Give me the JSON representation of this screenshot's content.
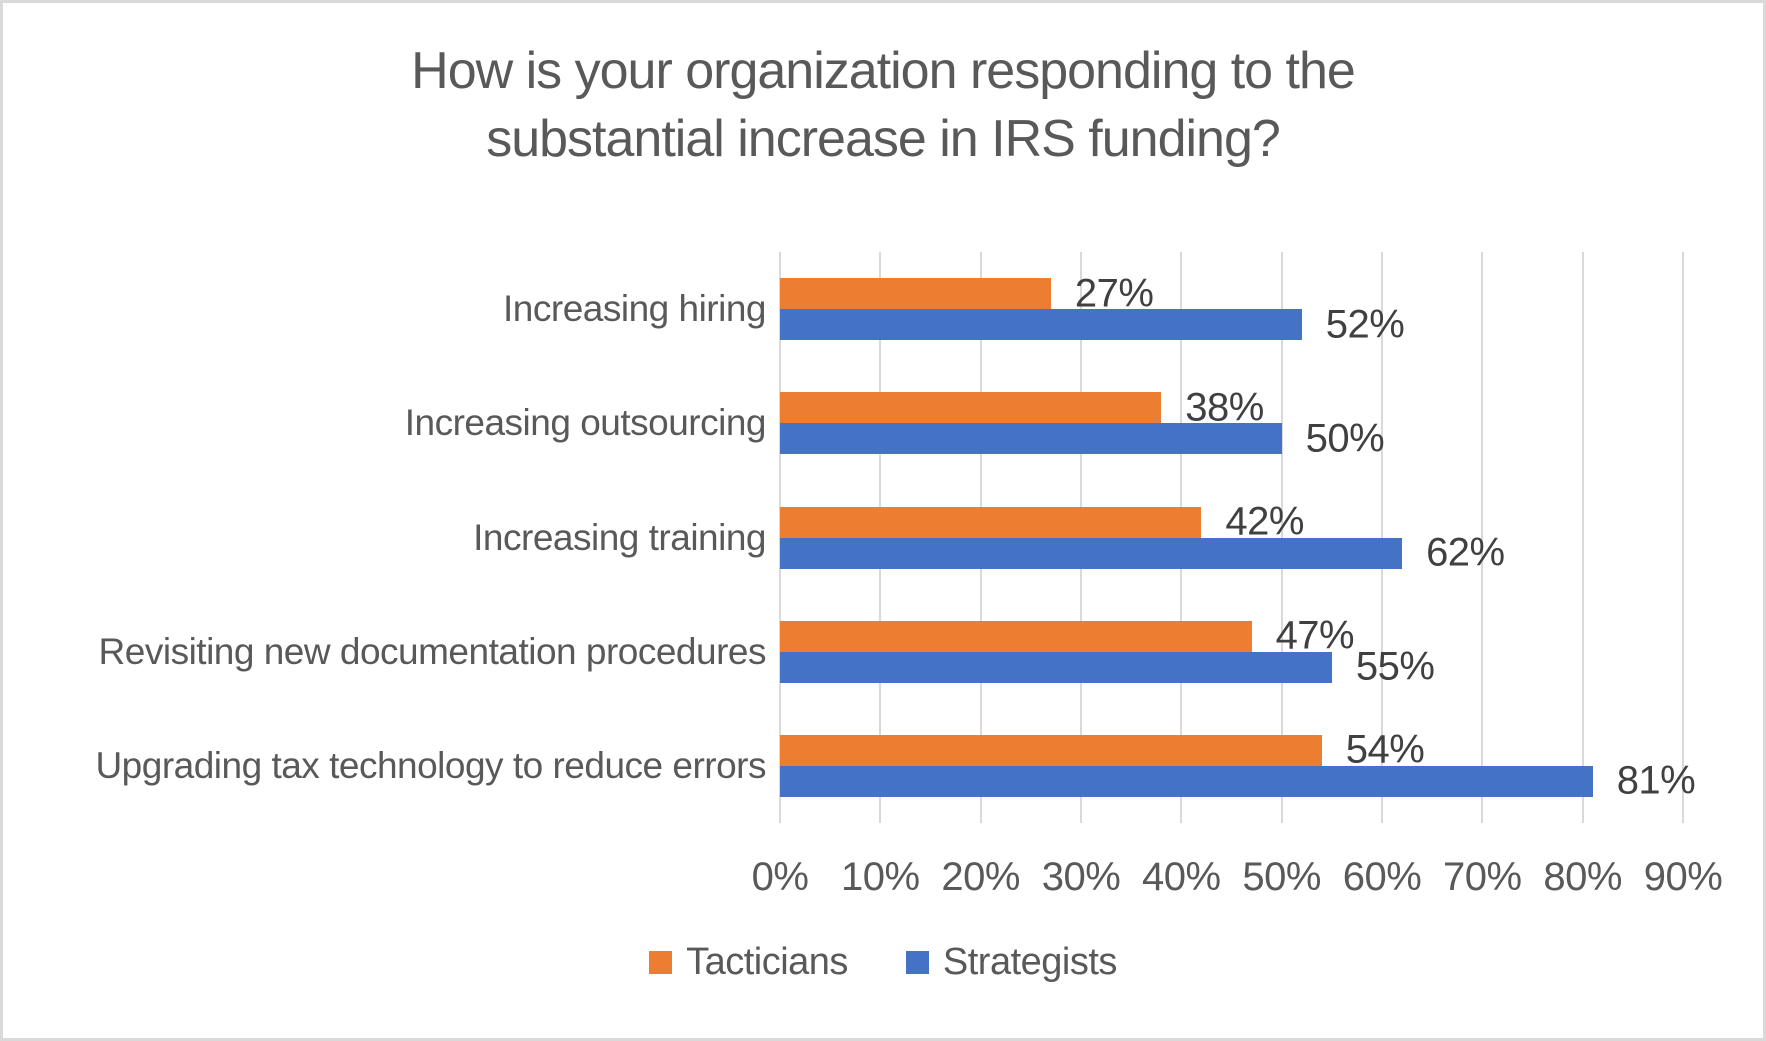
{
  "chart_data": {
    "type": "bar",
    "orientation": "horizontal",
    "title": "How is your organization responding to the substantial increase in IRS funding?",
    "title_lines": [
      "How is your organization responding to the",
      "substantial increase in IRS funding?"
    ],
    "categories": [
      "Increasing hiring",
      "Increasing outsourcing",
      "Increasing training",
      "Revisiting new documentation procedures",
      "Upgrading tax technology to reduce errors"
    ],
    "series": [
      {
        "name": "Tacticians",
        "color": "#ED7D31",
        "values": [
          27,
          38,
          42,
          47,
          54
        ],
        "labels": [
          "27%",
          "38%",
          "42%",
          "47%",
          "54%"
        ]
      },
      {
        "name": "Strategists",
        "color": "#4472C4",
        "values": [
          52,
          50,
          62,
          55,
          81
        ],
        "labels": [
          "52%",
          "50%",
          "62%",
          "55%",
          "81%"
        ]
      }
    ],
    "x_axis": {
      "min": 0,
      "max": 90,
      "step": 10,
      "tick_labels": [
        "0%",
        "10%",
        "20%",
        "30%",
        "40%",
        "50%",
        "60%",
        "70%",
        "80%",
        "90%"
      ]
    },
    "legend": {
      "position": "bottom",
      "items": [
        "Tacticians",
        "Strategists"
      ]
    },
    "grid": true,
    "colors": {
      "grid": "#D9D9D9",
      "title_text": "#595959",
      "axis_text": "#595959",
      "data_label_text": "#404040",
      "border": "#D9D9D9"
    }
  }
}
